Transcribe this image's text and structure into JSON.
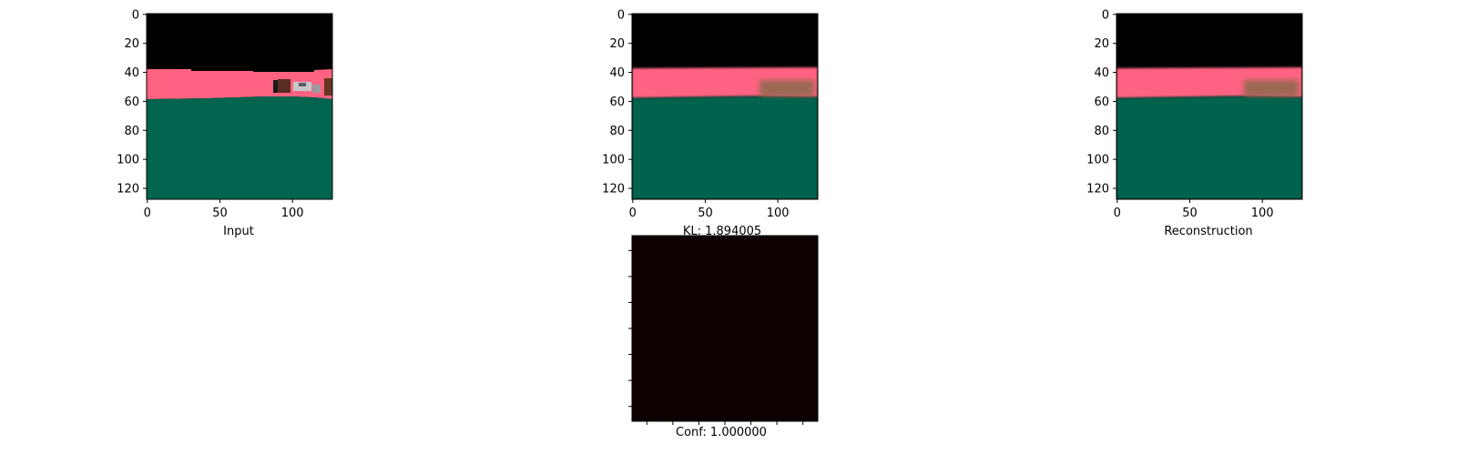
{
  "colors": {
    "background": "#ffffff",
    "top_black": "#000000",
    "pink_band": "#ff6381",
    "teal_ground": "#00644e",
    "confidence_map": "#0e0000",
    "blur_patch": "#8a6a4c",
    "brown_object": "#5a2c22",
    "gray_car": "#c8c8cc"
  },
  "panels": {
    "input": {
      "label": "Input",
      "x_ticks": [
        "0",
        "50",
        "100"
      ],
      "y_ticks": [
        "0",
        "20",
        "40",
        "60",
        "80",
        "100",
        "120"
      ]
    },
    "kl": {
      "label": "KL: 1.894005",
      "x_ticks": [
        "0",
        "50",
        "100"
      ],
      "y_ticks": [
        "0",
        "20",
        "40",
        "60",
        "80",
        "100",
        "120"
      ]
    },
    "reconstruction": {
      "label": "Reconstruction",
      "x_ticks": [
        "0",
        "50",
        "100"
      ],
      "y_ticks": [
        "0",
        "20",
        "40",
        "60",
        "80",
        "100",
        "120"
      ]
    },
    "confidence": {
      "label": "Conf: 1.000000"
    }
  }
}
